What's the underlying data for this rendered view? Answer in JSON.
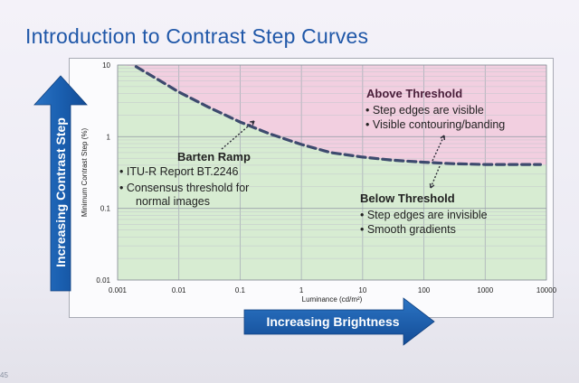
{
  "slide": {
    "title": "Introduction to Contrast Step Curves",
    "number": "45"
  },
  "arrows": {
    "vertical_label": "Increasing Contrast Step",
    "horizontal_label": "Increasing Brightness",
    "color": "#1a5fb0"
  },
  "chart_data": {
    "type": "line",
    "xlabel": "Luminance (cd/m²)",
    "ylabel": "Minimum Contrast Step (%)",
    "x_scale": "log",
    "y_scale": "log",
    "xlim": [
      0.001,
      10000
    ],
    "ylim": [
      0.01,
      10
    ],
    "x_ticks": [
      "0.001",
      "0.01",
      "0.1",
      "1",
      "10",
      "100",
      "1000",
      "10000"
    ],
    "y_ticks": [
      "10",
      "1",
      "0.1",
      "0.01"
    ],
    "grid": true,
    "series": [
      {
        "name": "Barten Ramp",
        "style": "dashed",
        "color": "#3d4a6e",
        "x": [
          0.002,
          0.005,
          0.01,
          0.03,
          0.1,
          0.3,
          1,
          3,
          10,
          30,
          100,
          300,
          1000,
          3000,
          8000
        ],
        "y": [
          9.5,
          6.0,
          4.2,
          2.6,
          1.6,
          1.1,
          0.78,
          0.6,
          0.52,
          0.47,
          0.44,
          0.42,
          0.41,
          0.41,
          0.41
        ]
      }
    ],
    "regions": {
      "above_color": "#f2cfe0",
      "below_color": "#d7ecd2"
    }
  },
  "annotations": {
    "above": {
      "title": "Above Threshold",
      "bullets": [
        "Step edges are visible",
        "Visible contouring/banding"
      ]
    },
    "barten": {
      "title": "Barten Ramp",
      "bullets": [
        "ITU-R Report BT.2246",
        "Consensus threshold for normal images"
      ]
    },
    "below": {
      "title": "Below Threshold",
      "bullets": [
        "Step edges are invisible",
        "Smooth gradients"
      ]
    }
  }
}
